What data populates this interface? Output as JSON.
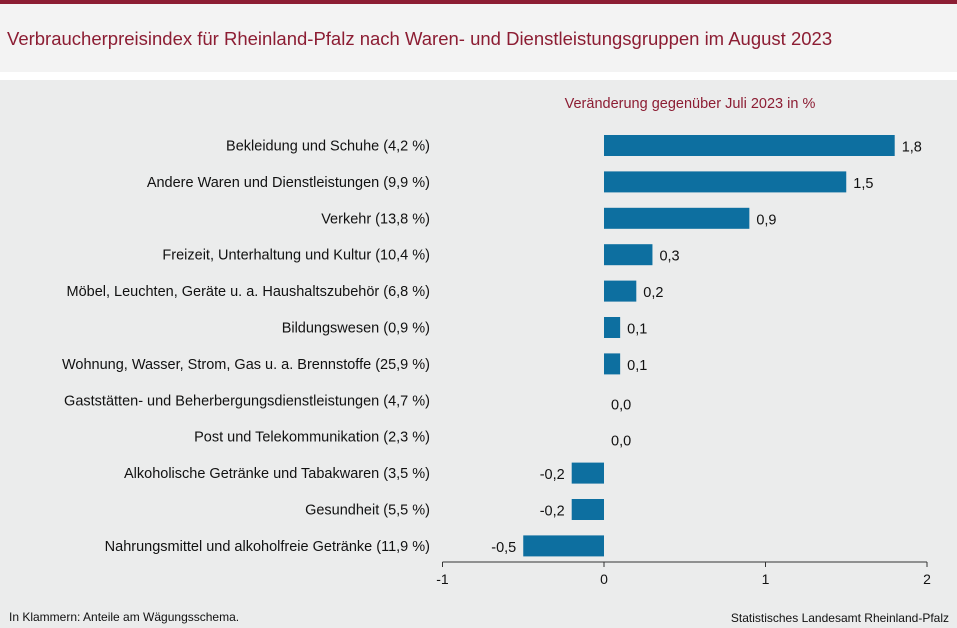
{
  "header": {
    "title": "Verbraucherpreisindex für Rheinland-Pfalz nach Waren- und Dienstleistungsgruppen im August 2023"
  },
  "footer": {
    "note": "In Klammern: Anteile am Wägungsschema.",
    "source": "Statistisches Landesamt Rheinland-Pfalz"
  },
  "colors": {
    "bar": "#0d6fa0",
    "accent": "#8c1d33"
  },
  "chart_data": {
    "type": "bar",
    "orientation": "horizontal",
    "subtitle": "Veränderung  gegenüber  Juli 2023 in %",
    "categories": [
      "Bekleidung und Schuhe (4,2 %)",
      "Andere Waren und Dienstleistungen (9,9 %)",
      "Verkehr (13,8 %)",
      "Freizeit, Unterhaltung und Kultur (10,4 %)",
      "Möbel, Leuchten, Geräte u. a. Haushaltszubehör (6,8 %)",
      "Bildungswesen (0,9 %)",
      "Wohnung, Wasser, Strom, Gas u. a. Brennstoffe (25,9 %)",
      "Gaststätten- und Beherbergungsdienstleistungen (4,7 %)",
      "Post und Telekommunikation (2,3 %)",
      "Alkoholische Getränke und Tabakwaren (3,5 %)",
      "Gesundheit (5,5 %)",
      "Nahrungsmittel und alkoholfreie Getränke (11,9 %)"
    ],
    "values": [
      1.8,
      1.5,
      0.9,
      0.3,
      0.2,
      0.1,
      0.1,
      0.0,
      0.0,
      -0.2,
      -0.2,
      -0.5
    ],
    "value_labels": [
      "1,8",
      "1,5",
      "0,9",
      "0,3",
      "0,2",
      "0,1",
      "0,1",
      "0,0",
      "0,0",
      "-0,2",
      "-0,2",
      "-0,5"
    ],
    "xlim": [
      -1,
      2
    ],
    "xticks": [
      -1,
      0,
      1,
      2
    ],
    "xtick_labels": [
      "-1",
      "0",
      "1",
      "2"
    ],
    "grid": false
  }
}
